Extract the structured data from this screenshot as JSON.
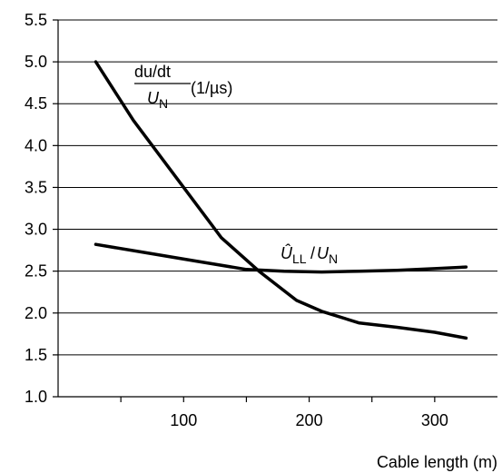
{
  "chart_data": {
    "type": "line",
    "xlabel": "Cable length (m)",
    "ylabel": "",
    "xlim": [
      0,
      350
    ],
    "ylim": [
      1.0,
      5.5
    ],
    "xticks": [
      100,
      200,
      300
    ],
    "yticks": [
      "1.0",
      "1.5",
      "2.0",
      "2.5",
      "3.0",
      "3.5",
      "4.0",
      "4.5",
      "5.0",
      "5.5"
    ],
    "grid": "horizontal",
    "series": [
      {
        "label_parts": {
          "numerator": "du/dt",
          "denominator": "U",
          "denominator_sub": "N",
          "suffix": "(1/µs)"
        },
        "x": [
          30,
          60,
          100,
          130,
          160,
          190,
          210,
          240,
          270,
          300,
          325
        ],
        "y": [
          5.0,
          4.3,
          3.5,
          2.9,
          2.5,
          2.15,
          2.02,
          1.88,
          1.83,
          1.77,
          1.7
        ]
      },
      {
        "label_parts": {
          "main": "Û",
          "main_sub": "LL",
          "slash": "/",
          "denom": "U",
          "denom_sub": "N"
        },
        "x": [
          30,
          70,
          110,
          150,
          180,
          210,
          240,
          270,
          300,
          325
        ],
        "y": [
          2.82,
          2.72,
          2.62,
          2.52,
          2.5,
          2.49,
          2.5,
          2.51,
          2.53,
          2.55
        ]
      }
    ]
  }
}
